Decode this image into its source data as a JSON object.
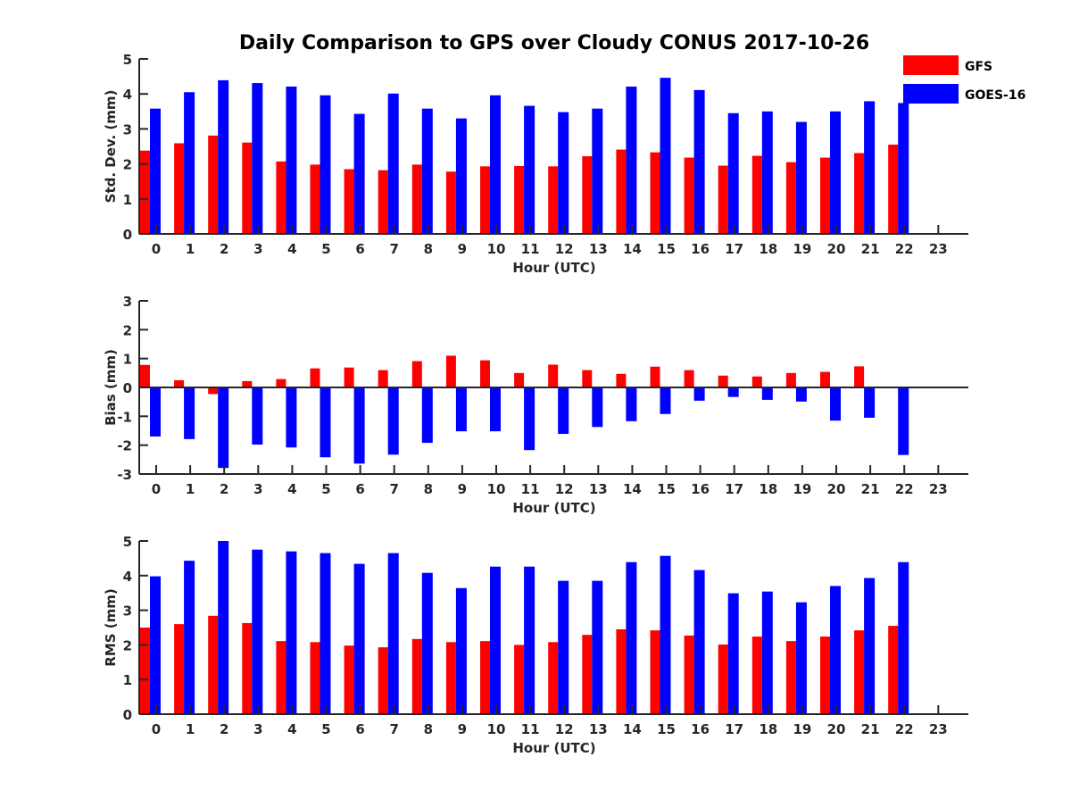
{
  "title": "Daily Comparison to GPS over Cloudy CONUS 2017-10-26",
  "colors": {
    "GFS": "#ff0000",
    "GOES-16": "#0000ff",
    "axis": "#262626"
  },
  "legend": [
    {
      "label": "GFS",
      "color": "#ff0000"
    },
    {
      "label": "GOES-16",
      "color": "#0000ff"
    }
  ],
  "chart_data": [
    {
      "type": "bar",
      "title": "Daily Comparison to GPS over Cloudy CONUS 2017-10-26",
      "xlabel": "Hour (UTC)",
      "ylabel": "Std. Dev. (mm)",
      "ylim": [
        0,
        5
      ],
      "yticks": [
        "0",
        "1",
        "2",
        "3",
        "4",
        "5"
      ],
      "categories": [
        "0",
        "1",
        "2",
        "3",
        "4",
        "5",
        "6",
        "7",
        "8",
        "9",
        "10",
        "11",
        "12",
        "13",
        "14",
        "15",
        "16",
        "17",
        "18",
        "19",
        "20",
        "21",
        "22",
        "23"
      ],
      "legend_position": "top-right",
      "series": [
        {
          "name": "GFS",
          "values": [
            2.38,
            2.59,
            2.81,
            2.61,
            2.07,
            1.98,
            1.85,
            1.82,
            1.98,
            1.78,
            1.93,
            1.94,
            1.93,
            2.22,
            2.41,
            2.33,
            2.18,
            1.95,
            2.23,
            2.05,
            2.18,
            2.31,
            2.55,
            null
          ]
        },
        {
          "name": "GOES-16",
          "values": [
            3.58,
            4.05,
            4.39,
            4.31,
            4.21,
            3.96,
            3.43,
            4.01,
            3.58,
            3.3,
            3.96,
            3.66,
            3.48,
            3.58,
            4.21,
            4.46,
            4.11,
            3.45,
            3.5,
            3.2,
            3.5,
            3.79,
            3.74,
            null
          ]
        }
      ]
    },
    {
      "type": "bar",
      "xlabel": "Hour (UTC)",
      "ylabel": "Bias (mm)",
      "ylim": [
        -3,
        3
      ],
      "yticks": [
        "-3",
        "-2",
        "-1",
        "0",
        "1",
        "2",
        "3"
      ],
      "categories": [
        "0",
        "1",
        "2",
        "3",
        "4",
        "5",
        "6",
        "7",
        "8",
        "9",
        "10",
        "11",
        "12",
        "13",
        "14",
        "15",
        "16",
        "17",
        "18",
        "19",
        "20",
        "21",
        "22",
        "23"
      ],
      "series": [
        {
          "name": "GFS",
          "values": [
            0.78,
            0.25,
            -0.23,
            0.22,
            0.29,
            0.66,
            0.69,
            0.6,
            0.91,
            1.1,
            0.94,
            0.5,
            0.79,
            0.6,
            0.47,
            0.72,
            0.6,
            0.41,
            0.38,
            0.5,
            0.54,
            0.73,
            0.0,
            null
          ]
        },
        {
          "name": "GOES-16",
          "values": [
            -1.7,
            -1.79,
            -2.79,
            -1.98,
            -2.08,
            -2.42,
            -2.64,
            -2.33,
            -1.92,
            -1.52,
            -1.52,
            -2.17,
            -1.61,
            -1.37,
            -1.17,
            -0.92,
            -0.46,
            -0.33,
            -0.43,
            -0.49,
            -1.15,
            -1.05,
            -2.34,
            null
          ]
        }
      ]
    },
    {
      "type": "bar",
      "xlabel": "Hour (UTC)",
      "ylabel": "RMS (mm)",
      "ylim": [
        0,
        5
      ],
      "yticks": [
        "0",
        "1",
        "2",
        "3",
        "4",
        "5"
      ],
      "categories": [
        "0",
        "1",
        "2",
        "3",
        "4",
        "5",
        "6",
        "7",
        "8",
        "9",
        "10",
        "11",
        "12",
        "13",
        "14",
        "15",
        "16",
        "17",
        "18",
        "19",
        "20",
        "21",
        "22",
        "23"
      ],
      "series": [
        {
          "name": "GFS",
          "values": [
            2.5,
            2.6,
            2.84,
            2.63,
            2.11,
            2.08,
            1.98,
            1.93,
            2.17,
            2.08,
            2.11,
            2.0,
            2.08,
            2.29,
            2.45,
            2.42,
            2.27,
            2.01,
            2.24,
            2.11,
            2.24,
            2.42,
            2.55,
            null
          ]
        },
        {
          "name": "GOES-16",
          "values": [
            3.98,
            4.43,
            5.0,
            4.75,
            4.7,
            4.65,
            4.34,
            4.65,
            4.08,
            3.64,
            4.26,
            4.26,
            3.85,
            3.85,
            4.39,
            4.57,
            4.16,
            3.49,
            3.54,
            3.23,
            3.7,
            3.93,
            4.39,
            null
          ]
        }
      ]
    }
  ]
}
